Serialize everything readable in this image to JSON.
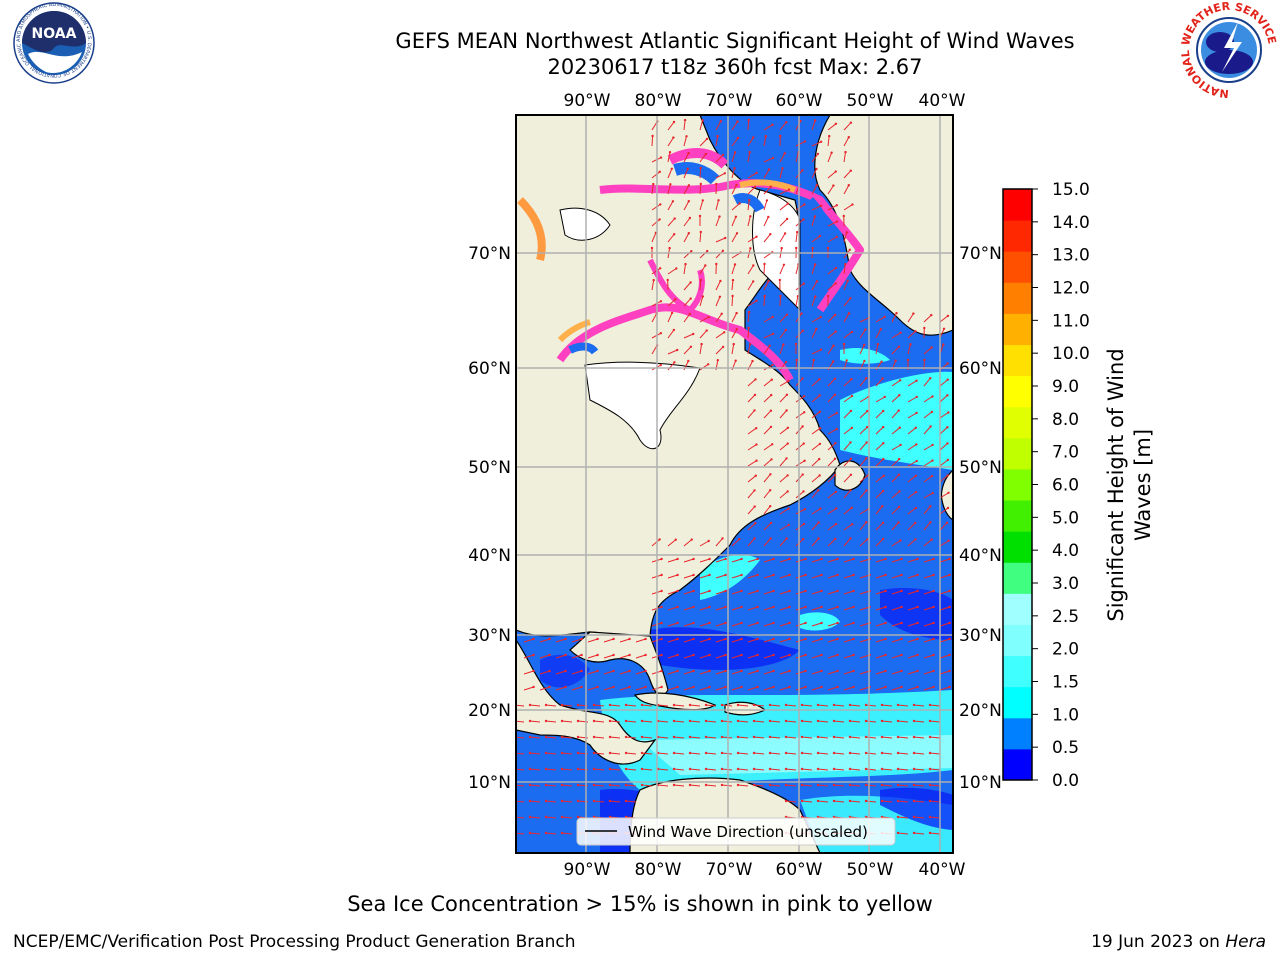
{
  "header": {
    "title": "GEFS MEAN Northwest Atlantic Significant Height of Wind Waves",
    "subtitle": "20230617 t18z 360h fcst   Max: 2.67"
  },
  "logos": {
    "noaa_text": "NOAA",
    "noaa_ring": "NATIONAL OCEANIC AND ATMOSPHERIC ADMINISTRATION • U.S. DEPARTMENT OF COMMERCE",
    "nws_ring": "NATIONAL WEATHER SERVICE"
  },
  "map": {
    "lon_labels": [
      "90°W",
      "80°W",
      "70°W",
      "60°W",
      "50°W",
      "40°W"
    ],
    "lat_labels": [
      "70°N",
      "60°N",
      "50°N",
      "40°N",
      "30°N",
      "20°N",
      "10°N"
    ],
    "legend": "Wind Wave Direction (unscaled)",
    "colors": {
      "land": "#efefdc",
      "ice_blank": "#ffffff",
      "vector": "#e8262b",
      "grid": "#b0b0b0"
    }
  },
  "colorbar": {
    "label": "Significant Height of Wind Waves [m]",
    "ticks": [
      "0.0",
      "0.5",
      "1.0",
      "1.5",
      "2.0",
      "2.5",
      "3.0",
      "4.0",
      "5.0",
      "6.0",
      "7.0",
      "8.0",
      "9.0",
      "10.0",
      "11.0",
      "12.0",
      "13.0",
      "14.0",
      "15.0"
    ],
    "colors": [
      "#0000ff",
      "#0080ff",
      "#00ffff",
      "#40ffff",
      "#80ffff",
      "#a0ffff",
      "#40ff80",
      "#00e000",
      "#40f000",
      "#80ff00",
      "#c0ff00",
      "#e0ff00",
      "#ffff00",
      "#ffe000",
      "#ffb000",
      "#ff8000",
      "#ff5000",
      "#ff2800",
      "#ff0000"
    ]
  },
  "caption": "Sea Ice Concentration > 15% is shown in pink to yellow",
  "footer": {
    "left": "NCEP/EMC/Verification Post Processing Product Generation Branch",
    "right_prefix": "19 Jun 2023 on ",
    "right_host": "Hera"
  }
}
